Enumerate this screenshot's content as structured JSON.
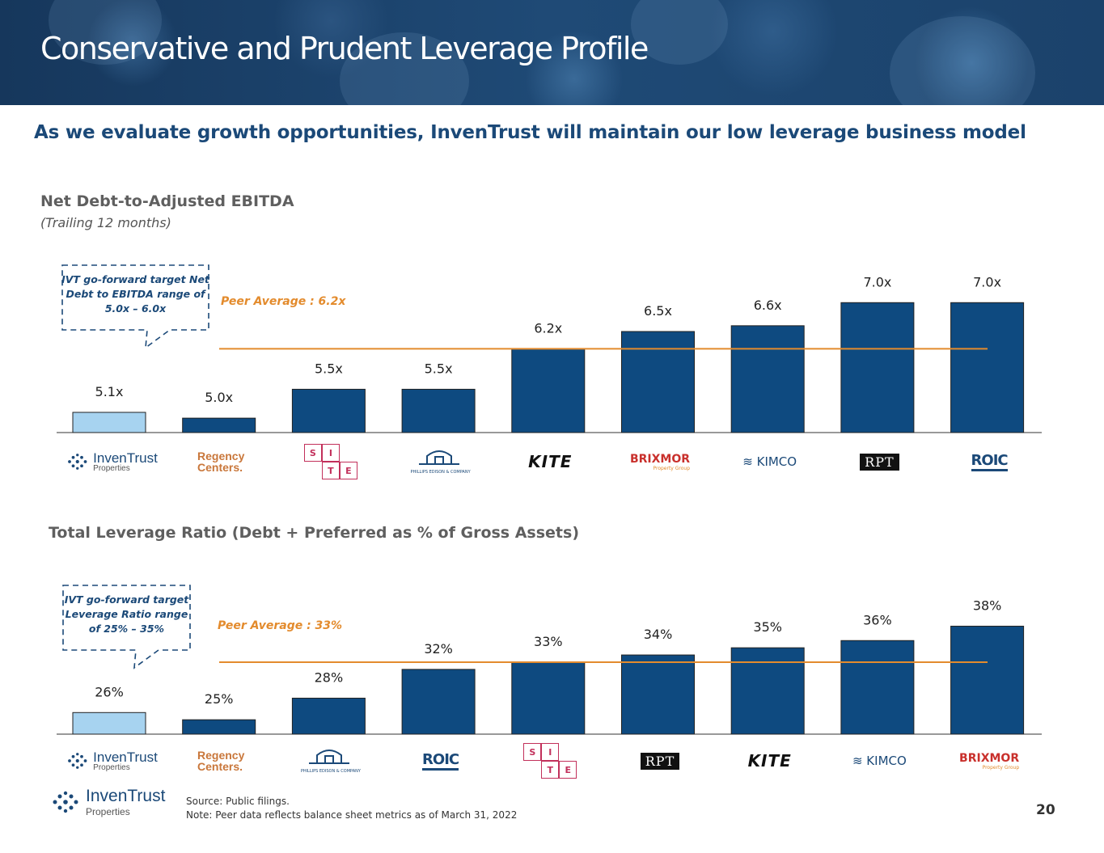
{
  "header": {
    "title": "Conservative and Prudent Leverage Profile",
    "subtitle": "As we evaluate growth opportunities, InvenTrust will maintain our low leverage business model"
  },
  "colors": {
    "navy": "#0e4a80",
    "light_blue": "#a7d3f0",
    "orange": "#e38b2d",
    "text_blue": "#1b4978"
  },
  "chart_data": [
    {
      "type": "bar",
      "title": "Net Debt-to-Adjusted EBITDA",
      "subtitle": "(Trailing 12 months)",
      "categories": [
        "InvenTrust Properties",
        "Regency Centers",
        "SITE Centers",
        "Phillips Edison & Company",
        "Kite",
        "Brixmor Property Group",
        "Kimco Realty",
        "RPT",
        "ROIC"
      ],
      "values": [
        5.1,
        5.0,
        5.5,
        5.5,
        6.2,
        6.5,
        6.6,
        7.0,
        7.0
      ],
      "labels": [
        "5.1x",
        "5.0x",
        "5.5x",
        "5.5x",
        "6.2x",
        "6.5x",
        "6.6x",
        "7.0x",
        "7.0x"
      ],
      "highlight_index": 0,
      "peer_average": 6.2,
      "peer_average_label": "Peer Average : 6.2x",
      "callout": [
        "IVT go-forward target Net",
        "Debt to EBITDA range of",
        "5.0x – 6.0x"
      ],
      "ylim": [
        4.75,
        7.2
      ]
    },
    {
      "type": "bar",
      "title": "Total Leverage Ratio (Debt + Preferred as % of Gross Assets)",
      "categories": [
        "InvenTrust Properties",
        "Regency Centers",
        "Phillips Edison & Company",
        "ROIC",
        "SITE Centers",
        "RPT",
        "Kite",
        "Kimco Realty",
        "Brixmor Property Group"
      ],
      "values": [
        26,
        25,
        28,
        32,
        33,
        34,
        35,
        36,
        38
      ],
      "labels": [
        "26%",
        "25%",
        "28%",
        "32%",
        "33%",
        "34%",
        "35%",
        "36%",
        "38%"
      ],
      "highlight_index": 0,
      "peer_average": 33,
      "peer_average_label": "Peer Average : 33%",
      "callout": [
        "IVT go-forward target",
        "Leverage Ratio range",
        "of 25% – 35%"
      ],
      "ylim": [
        23,
        38.5
      ]
    }
  ],
  "logos": {
    "inventrust": {
      "name": "InvenTrust",
      "sub": "Properties"
    },
    "regency": {
      "line1": "Regency",
      "line2": "Centers."
    },
    "site": [
      "S",
      "I",
      "",
      "T",
      "E"
    ],
    "phillips": "PHILLIPS EDISON & COMPANY",
    "kite": "KITE",
    "brixmor": {
      "name": "BRIXMOR",
      "sub": "Property Group"
    },
    "kimco": "KIMCO",
    "rpt": "RPT",
    "roic": "ROIC"
  },
  "footer": {
    "source": "Source: Public filings.",
    "note": "Note: Peer data reflects balance sheet metrics as of March 31, 2022",
    "page": "20"
  }
}
